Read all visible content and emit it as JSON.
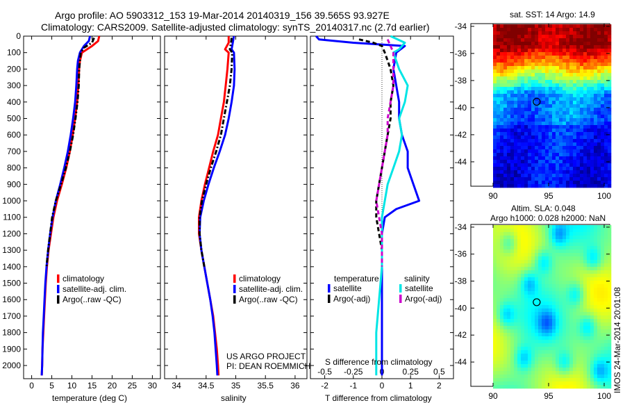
{
  "header": {
    "line1": "Argo profile: AO 5903312_153 19-Mar-2014 20140319_156 39.565S 93.927E",
    "line2": "Climatology: CARS2009. Satellite-adjusted climatology: synTS_20140317.nc (2.7d earlier)"
  },
  "colors": {
    "climatology": "#ff0000",
    "satellite": "#0000ff",
    "argo": "#000000",
    "sal_satellite": "#00e5e5",
    "sal_argo": "#cc00cc"
  },
  "chart_data": [
    {
      "type": "line",
      "id": "temperature",
      "xlabel": "temperature (deg C)",
      "ylabel": "",
      "xlim": [
        -2,
        32
      ],
      "ylim": [
        2080,
        0
      ],
      "y_reversed": true,
      "xticks": [
        0,
        5,
        10,
        15,
        20,
        25,
        30
      ],
      "yticks": [
        0,
        100,
        200,
        300,
        400,
        500,
        600,
        700,
        800,
        900,
        1000,
        1100,
        1200,
        1300,
        1400,
        1500,
        1600,
        1700,
        1800,
        1900,
        2000
      ],
      "legend": [
        "climatology",
        "satellite-adj. clim.",
        "Argo(..raw -QC)"
      ],
      "legend_position": "bottom-center",
      "series": [
        {
          "name": "climatology",
          "color": "#ff0000",
          "dash": "solid",
          "points": [
            [
              16.8,
              0
            ],
            [
              16.5,
              30
            ],
            [
              15.0,
              60
            ],
            [
              12.5,
              100
            ],
            [
              12.0,
              150
            ],
            [
              11.8,
              200
            ],
            [
              11.6,
              300
            ],
            [
              11.3,
              400
            ],
            [
              10.8,
              500
            ],
            [
              10.2,
              600
            ],
            [
              9.5,
              700
            ],
            [
              8.6,
              800
            ],
            [
              7.5,
              900
            ],
            [
              6.3,
              1000
            ],
            [
              5.4,
              1100
            ],
            [
              4.8,
              1200
            ],
            [
              4.2,
              1300
            ],
            [
              3.8,
              1400
            ],
            [
              3.5,
              1500
            ],
            [
              3.3,
              1600
            ],
            [
              3.1,
              1700
            ],
            [
              2.9,
              1800
            ],
            [
              2.7,
              1900
            ],
            [
              2.6,
              2000
            ],
            [
              2.5,
              2060
            ]
          ]
        },
        {
          "name": "satellite-adj. clim.",
          "color": "#0000ff",
          "dash": "solid",
          "points": [
            [
              14.5,
              0
            ],
            [
              14.2,
              30
            ],
            [
              13.0,
              60
            ],
            [
              12.0,
              100
            ],
            [
              11.5,
              150
            ],
            [
              11.3,
              200
            ],
            [
              11.1,
              300
            ],
            [
              10.8,
              400
            ],
            [
              10.3,
              500
            ],
            [
              9.7,
              600
            ],
            [
              9.0,
              700
            ],
            [
              8.1,
              800
            ],
            [
              7.1,
              900
            ],
            [
              6.0,
              1000
            ],
            [
              5.2,
              1100
            ],
            [
              4.6,
              1200
            ],
            [
              4.1,
              1300
            ],
            [
              3.7,
              1400
            ],
            [
              3.4,
              1500
            ],
            [
              3.2,
              1600
            ],
            [
              3.0,
              1700
            ],
            [
              2.8,
              1800
            ],
            [
              2.7,
              1900
            ],
            [
              2.6,
              2000
            ],
            [
              2.5,
              2060
            ]
          ]
        },
        {
          "name": "Argo(..raw -QC)",
          "color": "#000000",
          "dash": "dashdot",
          "points": [
            [
              15.5,
              10
            ],
            [
              15.0,
              40
            ],
            [
              13.0,
              70
            ],
            [
              12.2,
              100
            ],
            [
              12.0,
              150
            ],
            [
              11.8,
              200
            ],
            [
              11.7,
              300
            ],
            [
              11.4,
              400
            ],
            [
              10.9,
              500
            ],
            [
              10.3,
              600
            ],
            [
              9.5,
              700
            ],
            [
              8.5,
              800
            ],
            [
              7.3,
              900
            ],
            [
              6.0,
              1000
            ],
            [
              5.1,
              1100
            ],
            [
              4.6,
              1200
            ],
            [
              4.1,
              1300
            ],
            [
              3.7,
              1400
            ]
          ]
        }
      ]
    },
    {
      "type": "line",
      "id": "salinity",
      "xlabel": "salinity",
      "ylabel": "",
      "xlim": [
        33.8,
        36.2
      ],
      "ylim": [
        2080,
        0
      ],
      "y_reversed": true,
      "xticks": [
        34,
        34.5,
        35,
        35.5,
        36
      ],
      "legend": [
        "climatology",
        "satellite-adj. clim.",
        "Argo(..raw -QC)"
      ],
      "legend_position": "bottom-right",
      "annotations": [
        "US ARGO PROJECT",
        "PI: DEAN ROEMMICH"
      ],
      "series": [
        {
          "name": "climatology",
          "color": "#ff0000",
          "dash": "solid",
          "points": [
            [
              34.88,
              0
            ],
            [
              34.88,
              40
            ],
            [
              34.82,
              80
            ],
            [
              34.88,
              100
            ],
            [
              34.86,
              200
            ],
            [
              34.83,
              300
            ],
            [
              34.8,
              400
            ],
            [
              34.75,
              500
            ],
            [
              34.7,
              600
            ],
            [
              34.62,
              700
            ],
            [
              34.55,
              800
            ],
            [
              34.48,
              900
            ],
            [
              34.42,
              1000
            ],
            [
              34.38,
              1100
            ],
            [
              34.38,
              1200
            ],
            [
              34.42,
              1300
            ],
            [
              34.47,
              1400
            ],
            [
              34.52,
              1500
            ],
            [
              34.57,
              1600
            ],
            [
              34.62,
              1700
            ],
            [
              34.65,
              1800
            ],
            [
              34.68,
              1900
            ],
            [
              34.7,
              2000
            ],
            [
              34.71,
              2060
            ]
          ]
        },
        {
          "name": "satellite-adj. clim.",
          "color": "#0000ff",
          "dash": "solid",
          "points": [
            [
              34.97,
              0
            ],
            [
              34.95,
              40
            ],
            [
              34.93,
              80
            ],
            [
              34.97,
              100
            ],
            [
              34.98,
              200
            ],
            [
              34.97,
              300
            ],
            [
              34.93,
              400
            ],
            [
              34.88,
              500
            ],
            [
              34.82,
              600
            ],
            [
              34.73,
              700
            ],
            [
              34.63,
              800
            ],
            [
              34.54,
              900
            ],
            [
              34.46,
              1000
            ],
            [
              34.4,
              1100
            ],
            [
              34.39,
              1200
            ],
            [
              34.42,
              1300
            ],
            [
              34.47,
              1400
            ],
            [
              34.52,
              1500
            ],
            [
              34.57,
              1600
            ],
            [
              34.61,
              1700
            ],
            [
              34.64,
              1800
            ],
            [
              34.66,
              1900
            ],
            [
              34.68,
              2000
            ],
            [
              34.69,
              2060
            ]
          ]
        },
        {
          "name": "Argo(..raw -QC)",
          "color": "#000000",
          "dash": "dashdot",
          "points": [
            [
              34.93,
              10
            ],
            [
              34.92,
              40
            ],
            [
              34.9,
              80
            ],
            [
              34.94,
              100
            ],
            [
              34.93,
              200
            ],
            [
              34.9,
              300
            ],
            [
              34.85,
              400
            ],
            [
              34.8,
              500
            ],
            [
              34.75,
              600
            ],
            [
              34.67,
              700
            ],
            [
              34.58,
              800
            ],
            [
              34.5,
              900
            ],
            [
              34.43,
              1000
            ],
            [
              34.39,
              1100
            ],
            [
              34.39,
              1200
            ],
            [
              34.42,
              1300
            ],
            [
              34.47,
              1400
            ]
          ]
        }
      ]
    },
    {
      "type": "line",
      "id": "difference",
      "xlabel": "T difference from climatology",
      "title_bottom": "S difference from climatology",
      "xlim": [
        -2.5,
        2.5
      ],
      "ylim": [
        2080,
        0
      ],
      "y_reversed": true,
      "xticks": [
        -2,
        -1,
        0,
        1,
        2
      ],
      "s_xticks": [
        "-0.5",
        "-0.25",
        "0",
        "0.25",
        "0.5"
      ],
      "s_xtick_positions": [
        -2,
        -1,
        0,
        1,
        2
      ],
      "legend_groups": {
        "temperature": {
          "label": "temperature",
          "items": [
            "satellite",
            "Argo(-adj)"
          ]
        },
        "salinity": {
          "label": "salinity",
          "items": [
            "satellite",
            "Argo(-adj)"
          ]
        }
      },
      "series": [
        {
          "name": "temperature satellite",
          "color": "#0000ff",
          "dash": "solid",
          "points": [
            [
              -2.3,
              0
            ],
            [
              -2.2,
              20
            ],
            [
              -1.0,
              40
            ],
            [
              0.8,
              60
            ],
            [
              0.5,
              100
            ],
            [
              0.4,
              200
            ],
            [
              0.5,
              300
            ],
            [
              0.6,
              400
            ],
            [
              0.6,
              500
            ],
            [
              0.7,
              600
            ],
            [
              0.9,
              700
            ],
            [
              0.9,
              800
            ],
            [
              1.1,
              900
            ],
            [
              1.3,
              1000
            ],
            [
              0.5,
              1050
            ],
            [
              0.1,
              1100
            ],
            [
              0.0,
              1200
            ],
            [
              0.0,
              1500
            ],
            [
              0.0,
              2060
            ]
          ]
        },
        {
          "name": "temperature Argo(-adj)",
          "color": "#000000",
          "dash": "dashed",
          "points": [
            [
              -0.8,
              20
            ],
            [
              -0.3,
              40
            ],
            [
              0.0,
              60
            ],
            [
              0.1,
              100
            ],
            [
              0.3,
              200
            ],
            [
              0.4,
              300
            ],
            [
              0.3,
              400
            ],
            [
              0.3,
              500
            ],
            [
              0.2,
              600
            ],
            [
              0.1,
              700
            ],
            [
              0.0,
              800
            ],
            [
              -0.1,
              900
            ],
            [
              -0.2,
              1000
            ],
            [
              -0.2,
              1100
            ],
            [
              -0.1,
              1200
            ],
            [
              0.0,
              1300
            ],
            [
              0.0,
              1400
            ]
          ]
        },
        {
          "name": "salinity satellite",
          "color": "#00e5e5",
          "dash": "solid",
          "points": [
            [
              0.3,
              0
            ],
            [
              0.8,
              40
            ],
            [
              0.6,
              80
            ],
            [
              0.4,
              100
            ],
            [
              0.6,
              200
            ],
            [
              0.9,
              300
            ],
            [
              0.8,
              400
            ],
            [
              0.6,
              500
            ],
            [
              0.7,
              600
            ],
            [
              0.6,
              700
            ],
            [
              0.4,
              800
            ],
            [
              0.2,
              900
            ],
            [
              0.1,
              1000
            ],
            [
              0.0,
              1100
            ],
            [
              0.0,
              1200
            ],
            [
              0.0,
              1400
            ],
            [
              -0.1,
              1600
            ],
            [
              -0.2,
              1800
            ],
            [
              -0.2,
              2000
            ],
            [
              -0.2,
              2060
            ]
          ]
        },
        {
          "name": "salinity Argo(-adj)",
          "color": "#cc00cc",
          "dash": "dashed",
          "points": [
            [
              0.2,
              20
            ],
            [
              0.3,
              60
            ],
            [
              0.4,
              100
            ],
            [
              0.4,
              200
            ],
            [
              0.4,
              300
            ],
            [
              0.3,
              400
            ],
            [
              0.2,
              500
            ],
            [
              0.2,
              600
            ],
            [
              0.1,
              700
            ],
            [
              0.0,
              800
            ],
            [
              -0.1,
              900
            ],
            [
              -0.2,
              1000
            ],
            [
              -0.1,
              1100
            ],
            [
              0.0,
              1200
            ],
            [
              0.0,
              1400
            ]
          ]
        }
      ]
    },
    {
      "type": "heatmap",
      "id": "sst-map",
      "title": "sat. SST: 14 Argo: 14.9",
      "xlim": [
        88,
        100.5
      ],
      "ylim": [
        -45.8,
        -33.8
      ],
      "xticks": [
        90,
        95,
        100
      ],
      "yticks": [
        -34,
        -36,
        -38,
        -40,
        -42,
        -44
      ],
      "marker": [
        93.927,
        -39.565
      ],
      "colorscale": "jet"
    },
    {
      "type": "heatmap",
      "id": "sla-map",
      "title_lines": [
        "Altim. SLA: 0.048",
        "Argo h1000: 0.028 h2000: NaN"
      ],
      "xlim": [
        88,
        100.5
      ],
      "ylim": [
        -45.8,
        -33.8
      ],
      "xticks": [
        90,
        95,
        100
      ],
      "yticks": [
        -34,
        -36,
        -38,
        -40,
        -42,
        -44
      ],
      "marker": [
        93.927,
        -39.565
      ],
      "colorscale": "jet-mid"
    }
  ],
  "side_stamp": "IMOS 24-Mar-2014 20:01:08"
}
